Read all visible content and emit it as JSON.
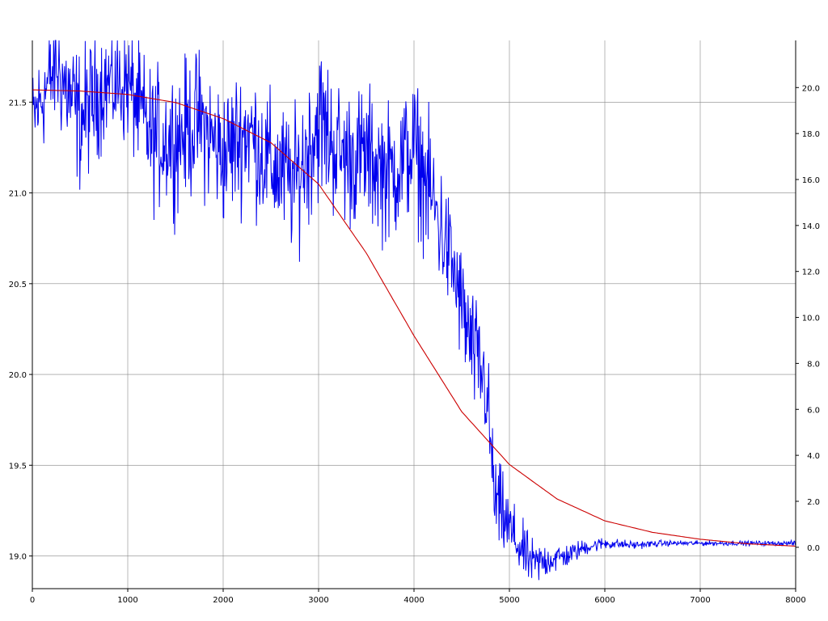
{
  "chart_data": {
    "type": "line",
    "title": "",
    "xlabel": "",
    "ylabel": "",
    "y2label": "",
    "grid": true,
    "legend": "none",
    "xlim": [
      0,
      8000
    ],
    "ylim": [
      18.82,
      21.84
    ],
    "y2lim": [
      -1.8,
      22.05
    ],
    "x_ticks": [
      0,
      1000,
      2000,
      3000,
      4000,
      5000,
      6000,
      7000,
      8000
    ],
    "x_tick_labels": [
      "0",
      "1000",
      "2000",
      "3000",
      "4000",
      "5000",
      "6000",
      "7000",
      "8000"
    ],
    "y_ticks": [
      19.0,
      19.5,
      20.0,
      20.5,
      21.0,
      21.5
    ],
    "y_tick_labels": [
      "19.0",
      "19.5",
      "20.0",
      "20.5",
      "21.0",
      "21.5"
    ],
    "y2_ticks": [
      0,
      2,
      4,
      6,
      8,
      10,
      12,
      14,
      16,
      18,
      20
    ],
    "y2_tick_labels": [
      "0.0",
      "2.0",
      "4.0",
      "6.0",
      "8.0",
      "10.0",
      "12.0",
      "14.0",
      "16.0",
      "18.0",
      "20.0"
    ],
    "series": [
      {
        "axis": "left",
        "color": "#0000ee",
        "x": [
          0,
          250,
          500,
          750,
          1000,
          1250,
          1500,
          1750,
          2000,
          2250,
          2500,
          2750,
          3000,
          3250,
          3500,
          3750,
          4000,
          4200,
          4400,
          4600,
          4750,
          4850,
          4950,
          5100,
          5250,
          5400,
          5600,
          5800,
          6000,
          6300,
          6600,
          7000,
          7500,
          8000
        ],
        "y": [
          21.4,
          21.7,
          21.4,
          21.6,
          21.6,
          21.3,
          21.3,
          21.4,
          21.2,
          21.35,
          21.15,
          21.05,
          21.4,
          21.2,
          21.2,
          21.1,
          21.25,
          20.95,
          20.6,
          20.15,
          19.95,
          19.3,
          19.2,
          19.05,
          18.95,
          18.98,
          19.0,
          19.05,
          19.07,
          19.06,
          19.07,
          19.07,
          19.07,
          19.07
        ],
        "noise": [
          0.25,
          0.3,
          0.35,
          0.3,
          0.3,
          0.35,
          0.35,
          0.35,
          0.35,
          0.35,
          0.35,
          0.35,
          0.4,
          0.35,
          0.35,
          0.35,
          0.35,
          0.35,
          0.3,
          0.3,
          0.3,
          0.25,
          0.2,
          0.15,
          0.12,
          0.09,
          0.06,
          0.04,
          0.03,
          0.02,
          0.015,
          0.012,
          0.012,
          0.012
        ]
      },
      {
        "axis": "right",
        "color": "#cc0000",
        "x": [
          0,
          500,
          1000,
          1500,
          2000,
          2500,
          3000,
          3500,
          4000,
          4500,
          5000,
          5500,
          6000,
          6500,
          7000,
          7500,
          8000
        ],
        "y": [
          19.9,
          19.85,
          19.7,
          19.35,
          18.65,
          17.6,
          15.8,
          12.8,
          9.2,
          5.9,
          3.6,
          2.1,
          1.15,
          0.65,
          0.35,
          0.15,
          0.05
        ]
      }
    ]
  }
}
